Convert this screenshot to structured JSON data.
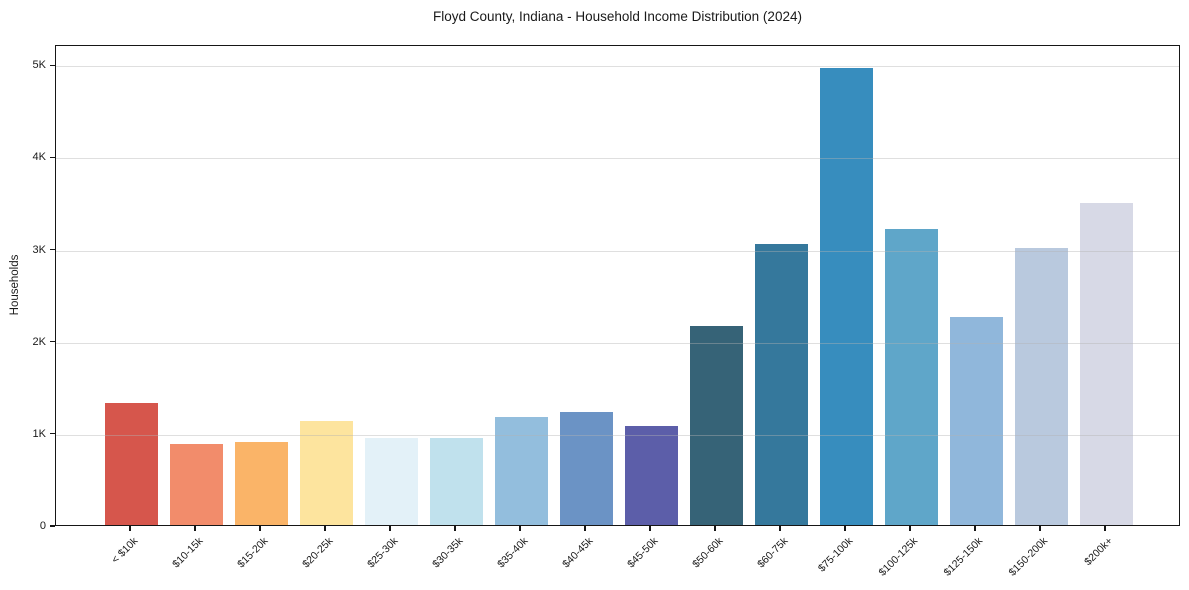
{
  "chart": {
    "title": "Floyd County, Indiana - Household Income Distribution (2024)",
    "y_axis_label": "Households"
  },
  "chart_data": {
    "type": "bar",
    "title": "Floyd County, Indiana - Household Income Distribution (2024)",
    "xlabel": "",
    "ylabel": "Households",
    "categories": [
      "< $10k",
      "$10-15k",
      "$15-20k",
      "$20-25k",
      "$25-30k",
      "$30-35k",
      "$35-40k",
      "$40-45k",
      "$45-50k",
      "$50-60k",
      "$60-75k",
      "$75-100k",
      "$100-125k",
      "$125-150k",
      "$150-200k",
      "$200k+"
    ],
    "values": [
      1325,
      880,
      905,
      1130,
      950,
      940,
      1170,
      1230,
      1080,
      2160,
      3055,
      4960,
      3215,
      2260,
      3010,
      3495
    ],
    "bar_colors": [
      "#d6564c",
      "#f28c6b",
      "#fab468",
      "#fde49e",
      "#e3f1f8",
      "#c0e1ed",
      "#93bedd",
      "#6b93c5",
      "#5c5ea9",
      "#366377",
      "#35789c",
      "#378dbe",
      "#5fa6c9",
      "#90b7db",
      "#b9c9de",
      "#d7d9e6"
    ],
    "ylim": [
      0,
      5220
    ],
    "yticks": [
      0,
      1000,
      2000,
      3000,
      4000,
      5000
    ],
    "ytick_labels": [
      "0",
      "1K",
      "2K",
      "3K",
      "4K",
      "5K"
    ],
    "grid": "horizontal, drawn above bars, light gray",
    "legend": "none",
    "x_tick_rotation_deg": 45
  }
}
